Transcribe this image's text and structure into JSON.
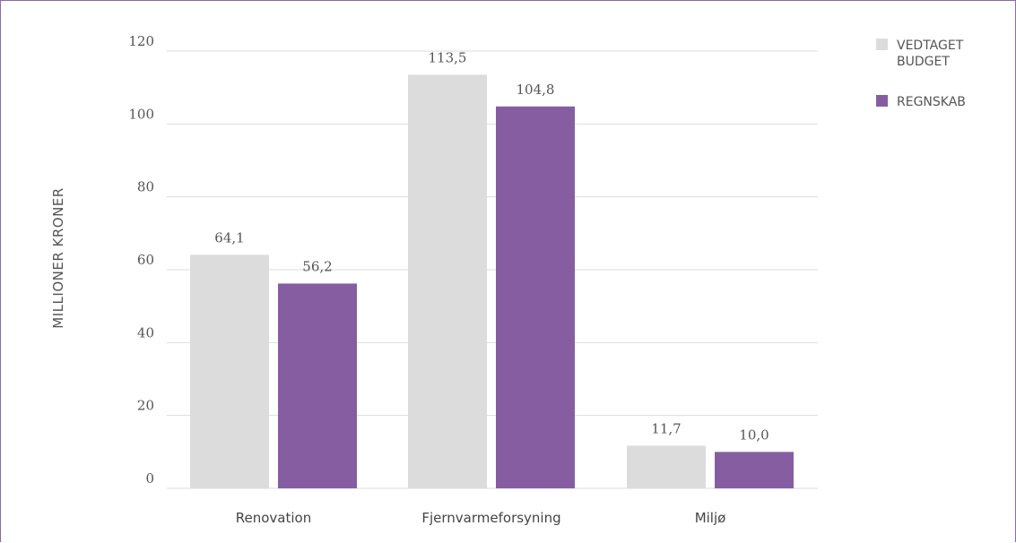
{
  "chart_data": {
    "type": "bar",
    "title": "",
    "xlabel": "",
    "ylabel": "MILLIONER KRONER",
    "categories": [
      "Renovation",
      "Fjernvarmeforsyning",
      "Miljø"
    ],
    "series": [
      {
        "name": "VEDTAGET BUDGET",
        "legend_lines": [
          "VEDTAGET",
          "BUDGET"
        ],
        "color": "#dcdcdc",
        "values": [
          64.1,
          113.5,
          11.7
        ],
        "labels": [
          "64,1",
          "113,5",
          "11,7"
        ]
      },
      {
        "name": "REGNSKAB",
        "legend_lines": [
          "REGNSKAB"
        ],
        "color": "#875da1",
        "values": [
          56.2,
          104.8,
          10.0
        ],
        "labels": [
          "56,2",
          "104,8",
          "10,0"
        ]
      }
    ],
    "ylim": [
      0,
      120
    ],
    "yticks": [
      0,
      20,
      40,
      60,
      80,
      100,
      120
    ],
    "ytick_labels": [
      "0",
      "20",
      "40",
      "60",
      "80",
      "100",
      "120"
    ],
    "grid": true,
    "legend": "top-right",
    "grid_color": "#dddddd",
    "frame_color": "#8a6aa8"
  }
}
